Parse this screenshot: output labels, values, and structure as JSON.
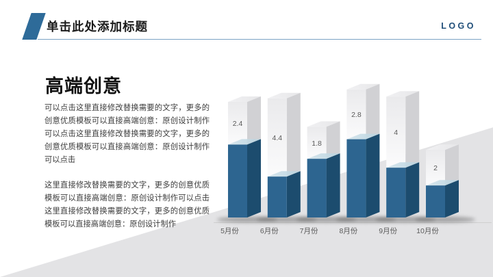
{
  "header": {
    "title": "单击此处添加标题",
    "logo": "LOGO",
    "accent_color": "#2e6b99",
    "logo_color": "#1f4e79",
    "divider_color": "#7ba3c4"
  },
  "body": {
    "heading": "高端创意",
    "paragraphs": [
      "可以点击这里直接修改替换需要的文字，更多的创意优质模板可以直接高端创意：原创设计制作可以点击这里直接修改替换需要的文字，更多的创意优质模板可以直接高端创意：原创设计制作可以点击",
      "这里直接修改替换需要的文字，更多的创意优质模板可以直接高端创意：原创设计制作可以点击这里直接修改替换需要的文字，更多的创意优质模板可以直接高端创意：原创设计制作"
    ],
    "text_color": "#3d3d3d"
  },
  "background": {
    "wedge_color": "#e3e3e5"
  },
  "chart_data": {
    "type": "bar",
    "variant": "3d-stacked-column",
    "categories": [
      "5月份",
      "6月份",
      "7月份",
      "8月份",
      "9月份",
      "10月份"
    ],
    "series": [
      {
        "name": "bottom-blue-segment",
        "values": [
          4.1,
          2.3,
          3.3,
          4.4,
          2.8,
          1.8
        ],
        "color": "#2d6590",
        "side_color": "#1c4c6e",
        "top_color": "#b9d3df",
        "labels_shown": false
      },
      {
        "name": "top-white-segment",
        "values": [
          2.4,
          4.4,
          1.8,
          2.8,
          4,
          2
        ],
        "color": "#f4f4f5",
        "side_color": "#d1d1d4",
        "top_color": "#e7e7e9",
        "labels_shown": true
      }
    ],
    "data_labels": [
      "2.4",
      "4.4",
      "1.8",
      "2.8",
      "4",
      "2"
    ],
    "label_color": "#595959",
    "axis_label_color": "#595959",
    "baseline_color": "#cfcfcf",
    "ylim": [
      0,
      8
    ],
    "grid": false,
    "legend": "none"
  }
}
